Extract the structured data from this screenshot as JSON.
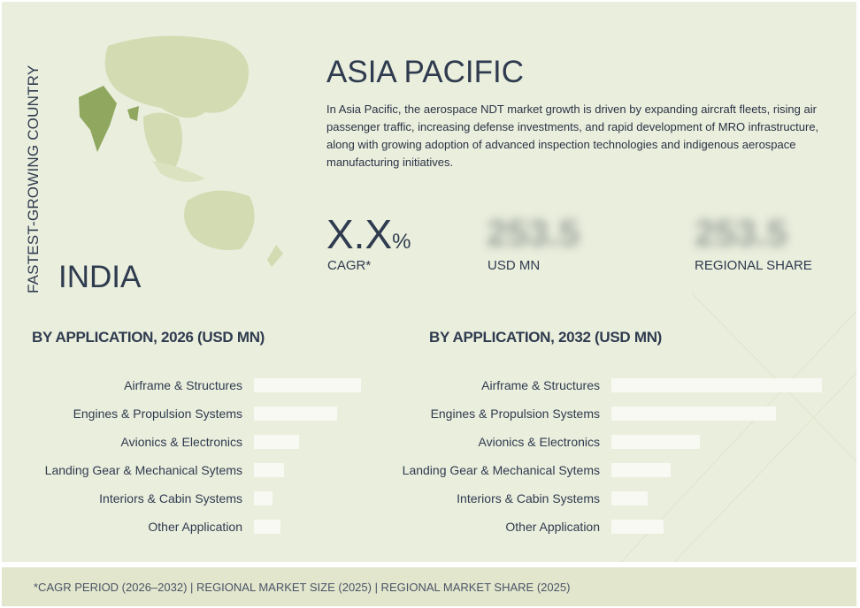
{
  "header": {
    "vertical_label": "FASTEST-GROWING COUNTRY",
    "country": "INDIA",
    "region_title": "ASIA PACIFIC",
    "description": "In Asia Pacific, the aerospace NDT market growth is driven by expanding aircraft fleets, rising air passenger traffic, increasing defense investments, and rapid development of MRO infrastructure, along with growing adoption of advanced inspection technologies and indigenous aerospace manufacturing initiatives."
  },
  "metrics": [
    {
      "value": "X.X",
      "unit": "%",
      "label": "CAGR*"
    },
    {
      "value": "253.5",
      "label": "USD MN",
      "blurred": true
    },
    {
      "value": "253.5",
      "label": "REGIONAL SHARE",
      "blurred": true
    }
  ],
  "colors": {
    "background": "#eaeedd",
    "map": "#c9d3a4",
    "highlight": "#8fa75f",
    "bar": "#f8f9f2",
    "text": "#2f3b4f"
  },
  "chart_data": [
    {
      "type": "bar",
      "orientation": "horizontal",
      "title": "BY APPLICATION, 2026 (USD MN)",
      "categories": [
        "Airframe & Structures",
        "Engines & Propulsion Systems",
        "Avionics & Electronics",
        "Landing Gear & Mechanical Sytems",
        "Interiors & Cabin Systems",
        "Other Application"
      ],
      "values": [
        121,
        94,
        51,
        34,
        21,
        30
      ],
      "axis_labels": false,
      "grid": false
    },
    {
      "type": "bar",
      "orientation": "horizontal",
      "title": "BY APPLICATION, 2032 (USD MN)",
      "categories": [
        "Airframe & Structures",
        "Engines & Propulsion Systems",
        "Avionics & Electronics",
        "Landing Gear & Mechanical Sytems",
        "Interiors & Cabin Systems",
        "Other Application"
      ],
      "values": [
        238,
        186,
        100,
        67,
        41,
        59
      ],
      "axis_labels": false,
      "grid": false
    }
  ],
  "footer": "*CAGR PERIOD (2026–2032) | REGIONAL MARKET SIZE (2025) | REGIONAL MARKET SHARE (2025)"
}
